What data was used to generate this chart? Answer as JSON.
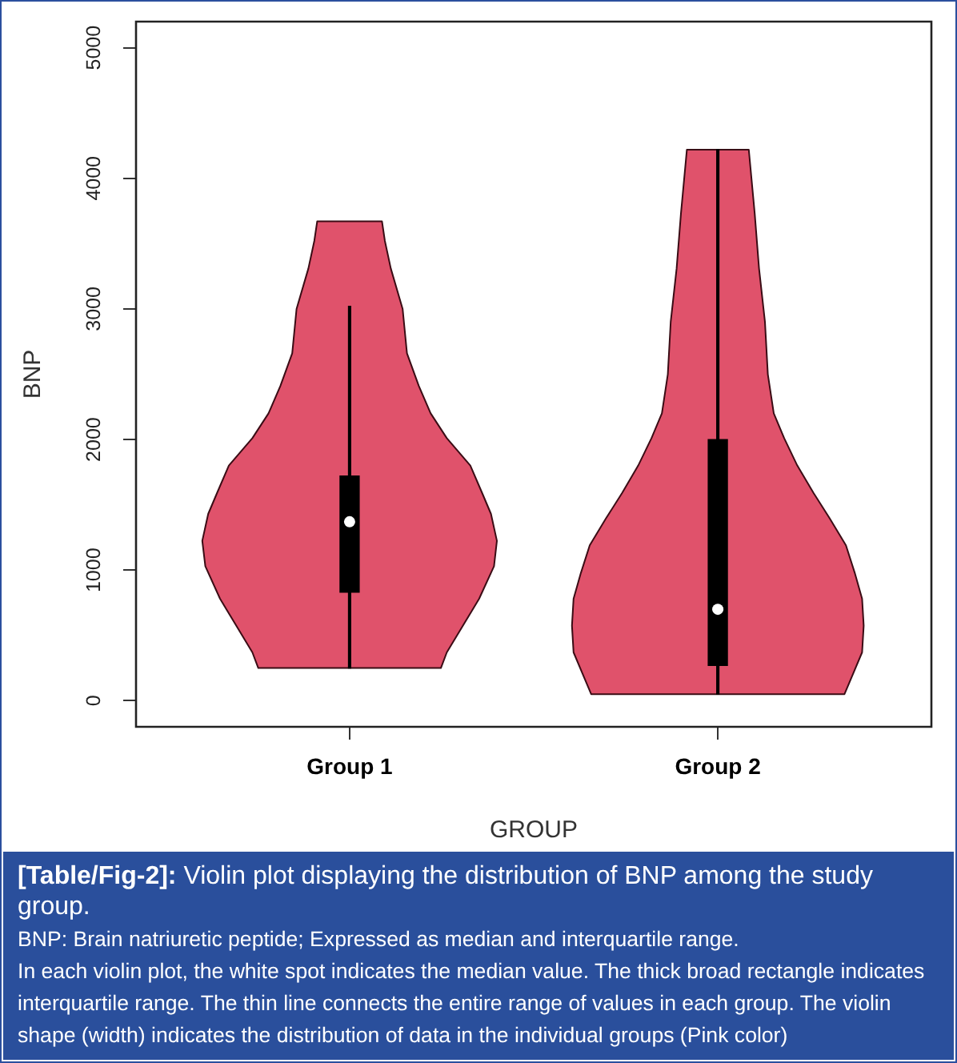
{
  "chart_data": {
    "type": "box",
    "categories": [
      "Group 1",
      "Group 2"
    ],
    "xlabel": "GROUP",
    "ylabel": "BNP",
    "ylim": [
      -200,
      5200
    ],
    "yticks": [
      0,
      1000,
      2000,
      3000,
      4000,
      5000
    ],
    "color": "#000000",
    "boxes": [
      {
        "low": 250,
        "q1": 830,
        "median": 1370,
        "q3": 1720,
        "high": 3020
      },
      {
        "low": 50,
        "q1": 270,
        "median": 700,
        "q3": 2000,
        "high": 4220
      }
    ],
    "annotations": [
      "[Table/Fig-2]: Violin plot displaying the distribution of BNP among the study group.",
      "BNP: Brain natriuretic peptide; Expressed as median and interquartile range.",
      "In each violin plot, the white spot indicates the median value. The thick broad rectangle indicates interquartile range. The thin line connects the entire range of values in each group. The violin shape (width) indicates the distribution of data in the individual groups (Pink color)"
    ]
  }
}
